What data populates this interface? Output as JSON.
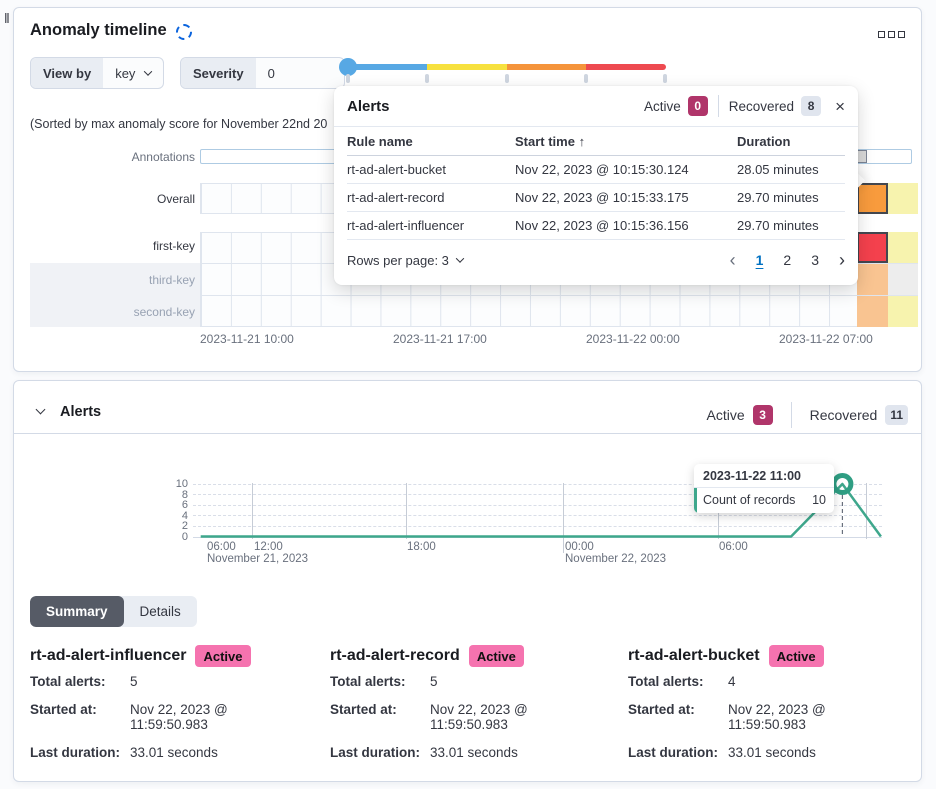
{
  "colors": {
    "severity_low": "#57a8e4",
    "severity_warning": "#f7e13e",
    "severity_minor": "#f5943b",
    "severity_critical": "#ee4a50",
    "active_badge": "#b0356a",
    "recovered_badge": "#e0e5ee",
    "accent_pink": "#f573af",
    "chart_teal": "#3ea78c",
    "swimlane_orange": "#f89b3d",
    "swimlane_red": "#f4414d",
    "swimlane_peach": "#f9c491",
    "swimlane_pale_yellow": "#f7f3ae",
    "swimlane_gray": "#ededed"
  },
  "anomaly_panel": {
    "title": "Anomaly timeline",
    "view_by": {
      "label": "View by",
      "value": "key"
    },
    "severity": {
      "label": "Severity",
      "value": "0"
    },
    "sorted_note": "(Sorted by max anomaly score for November 22nd 20",
    "swimlane": {
      "row_labels": [
        "Annotations",
        "Overall",
        "first-key",
        "third-key",
        "second-key"
      ],
      "x_ticks": [
        "2023-11-21 10:00",
        "2023-11-21 17:00",
        "2023-11-22 00:00",
        "2023-11-22 07:00"
      ]
    }
  },
  "alerts_popup": {
    "title": "Alerts",
    "active_label": "Active",
    "active_count": "0",
    "recovered_label": "Recovered",
    "recovered_count": "8",
    "columns": {
      "rule": "Rule name",
      "start": "Start time",
      "duration": "Duration"
    },
    "rows": [
      {
        "rule": "rt-ad-alert-bucket",
        "start": "Nov 22, 2023 @ 10:15:30.124",
        "duration": "28.05 minutes"
      },
      {
        "rule": "rt-ad-alert-record",
        "start": "Nov 22, 2023 @ 10:15:33.175",
        "duration": "29.70 minutes"
      },
      {
        "rule": "rt-ad-alert-influencer",
        "start": "Nov 22, 2023 @ 10:15:36.156",
        "duration": "29.70 minutes"
      }
    ],
    "rows_per_page": "Rows per page: 3",
    "pages": [
      "1",
      "2",
      "3"
    ]
  },
  "alerts_panel": {
    "title": "Alerts",
    "active_label": "Active",
    "active_count": "3",
    "recovered_label": "Recovered",
    "recovered_count": "11",
    "chart_data": {
      "type": "line",
      "title": "",
      "xlabel": "",
      "ylabel": "",
      "ylim": [
        0,
        10
      ],
      "grid": true,
      "y_ticks": [
        "10",
        "8",
        "6",
        "4",
        "2",
        "0"
      ],
      "x_tick_labels": [
        "06:00",
        "12:00",
        "18:00",
        "00:00",
        "06:00"
      ],
      "x_date_labels": [
        "November 21, 2023",
        "November 22, 2023"
      ],
      "series": [
        {
          "name": "Count of records",
          "color": "#3ea78c",
          "points": [
            [
              "2023-11-21 10:00",
              0
            ],
            [
              "2023-11-22 09:00",
              0
            ],
            [
              "2023-11-22 11:00",
              10
            ],
            [
              "2023-11-22 12:30",
              0
            ]
          ]
        }
      ],
      "highlighted_point": {
        "x": "2023-11-22 11:00",
        "y": 10
      }
    },
    "tooltip": {
      "title": "2023-11-22 11:00",
      "series": "Count of records",
      "value": "10"
    },
    "tabs": [
      "Summary",
      "Details"
    ],
    "active_tab": "Summary",
    "cards": [
      {
        "name": "rt-ad-alert-influencer",
        "status": "Active",
        "total_label": "Total alerts:",
        "total": "5",
        "started_label": "Started at:",
        "started": "Nov 22, 2023 @ 11:59:50.983",
        "duration_label": "Last duration:",
        "duration": "33.01 seconds"
      },
      {
        "name": "rt-ad-alert-record",
        "status": "Active",
        "total_label": "Total alerts:",
        "total": "5",
        "started_label": "Started at:",
        "started": "Nov 22, 2023 @ 11:59:50.983",
        "duration_label": "Last duration:",
        "duration": "33.01 seconds"
      },
      {
        "name": "rt-ad-alert-bucket",
        "status": "Active",
        "total_label": "Total alerts:",
        "total": "4",
        "started_label": "Started at:",
        "started": "Nov 22, 2023 @ 11:59:50.983",
        "duration_label": "Last duration:",
        "duration": "33.01 seconds"
      }
    ]
  }
}
